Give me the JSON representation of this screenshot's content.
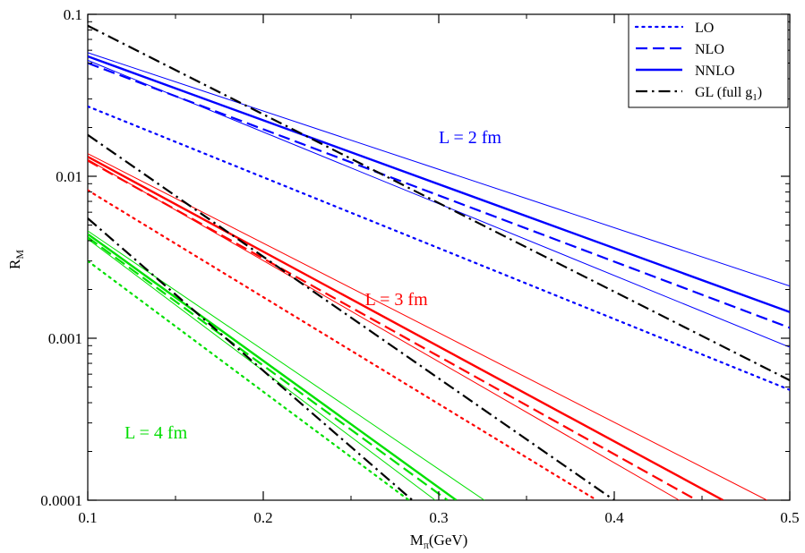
{
  "chart_data": {
    "type": "line",
    "title": "",
    "xlabel": "M",
    "xlabel_sub": "π",
    "xlabel_unit": "(GeV)",
    "ylabel": "R",
    "ylabel_sub": "M",
    "xscale": "linear",
    "yscale": "log",
    "xlim": [
      0.1,
      0.5
    ],
    "ylim": [
      0.0001,
      0.1
    ],
    "xticks": [
      0.1,
      0.2,
      0.3,
      0.4,
      0.5
    ],
    "xtick_labels": [
      "0.1",
      "0.2",
      "0.3",
      "0.4",
      "0.5"
    ],
    "yticks": [
      0.0001,
      0.001,
      0.01,
      0.1
    ],
    "ytick_labels": [
      "0.0001",
      "0.001",
      "0.01",
      "0.1"
    ],
    "grid": false,
    "legend_position": "top-right",
    "legend": [
      {
        "label": "LO",
        "style": "dotted"
      },
      {
        "label": "NLO",
        "style": "dashed"
      },
      {
        "label": "NNLO",
        "style": "solid"
      },
      {
        "label": "GL (full g",
        "sub": "1",
        "suffix": ")",
        "style": "dashdot"
      }
    ],
    "annotations": [
      {
        "text": "L = 2 fm",
        "color": "#0000ff",
        "x": 0.3,
        "y": 0.016
      },
      {
        "text": "L = 3 fm",
        "color": "#ff0000",
        "x": 0.258,
        "y": 0.0016
      },
      {
        "text": "L = 4 fm",
        "color": "#00dd00",
        "x": 0.121,
        "y": 0.00024
      }
    ],
    "colors": {
      "L2": "#0000ff",
      "L3": "#ff0000",
      "L4": "#00e000",
      "GL": "#000000"
    },
    "series": [
      {
        "name": "L=2 fm LO",
        "group": "L2",
        "style": "dotted",
        "x": [
          0.1,
          0.5
        ],
        "y": [
          0.027,
          0.00048
        ]
      },
      {
        "name": "L=2 fm NLO",
        "group": "L2",
        "style": "dashed",
        "x": [
          0.1,
          0.5
        ],
        "y": [
          0.05,
          0.00116
        ]
      },
      {
        "name": "L=2 fm NNLO",
        "group": "L2",
        "style": "solid",
        "x": [
          0.1,
          0.5
        ],
        "y": [
          0.055,
          0.00145
        ]
      },
      {
        "name": "L=2 fm NNLO band upper",
        "group": "L2",
        "style": "thin",
        "x": [
          0.1,
          0.5
        ],
        "y": [
          0.058,
          0.0021
        ]
      },
      {
        "name": "L=2 fm NNLO band lower",
        "group": "L2",
        "style": "thin",
        "x": [
          0.1,
          0.5
        ],
        "y": [
          0.052,
          0.00088
        ]
      },
      {
        "name": "L=2 fm GL",
        "group": "GL",
        "style": "dashdot",
        "x": [
          0.1,
          0.5
        ],
        "y": [
          0.085,
          0.00055
        ]
      },
      {
        "name": "L=3 fm LO",
        "group": "L3",
        "style": "dotted",
        "x": [
          0.1,
          0.39
        ],
        "y": [
          0.0082,
          0.0001
        ]
      },
      {
        "name": "L=3 fm NLO",
        "group": "L3",
        "style": "dashed",
        "x": [
          0.1,
          0.447
        ],
        "y": [
          0.0125,
          0.0001
        ]
      },
      {
        "name": "L=3 fm NNLO",
        "group": "L3",
        "style": "solid",
        "x": [
          0.1,
          0.462
        ],
        "y": [
          0.0132,
          0.0001
        ]
      },
      {
        "name": "L=3 fm NNLO band upper",
        "group": "L3",
        "style": "thin",
        "x": [
          0.1,
          0.487
        ],
        "y": [
          0.0138,
          0.0001
        ]
      },
      {
        "name": "L=3 fm NNLO band lower",
        "group": "L3",
        "style": "thin",
        "x": [
          0.1,
          0.437
        ],
        "y": [
          0.0127,
          0.0001
        ]
      },
      {
        "name": "L=3 fm GL",
        "group": "GL",
        "style": "dashdot",
        "x": [
          0.1,
          0.4
        ],
        "y": [
          0.018,
          0.0001
        ]
      },
      {
        "name": "L=4 fm LO",
        "group": "L4",
        "style": "dotted",
        "x": [
          0.1,
          0.283
        ],
        "y": [
          0.003,
          0.0001
        ]
      },
      {
        "name": "L=4 fm NLO",
        "group": "L4",
        "style": "dashed",
        "x": [
          0.1,
          0.305
        ],
        "y": [
          0.0042,
          0.0001
        ]
      },
      {
        "name": "L=4 fm NNLO",
        "group": "L4",
        "style": "solid",
        "x": [
          0.1,
          0.31
        ],
        "y": [
          0.0044,
          0.0001
        ]
      },
      {
        "name": "L=4 fm NNLO band upper",
        "group": "L4",
        "style": "thin",
        "x": [
          0.1,
          0.326
        ],
        "y": [
          0.0046,
          0.0001
        ]
      },
      {
        "name": "L=4 fm NNLO band lower",
        "group": "L4",
        "style": "thin",
        "x": [
          0.1,
          0.298
        ],
        "y": [
          0.0041,
          0.0001
        ]
      },
      {
        "name": "L=4 fm GL",
        "group": "GL",
        "style": "dashdot",
        "x": [
          0.1,
          0.285
        ],
        "y": [
          0.0055,
          0.0001
        ]
      }
    ]
  }
}
